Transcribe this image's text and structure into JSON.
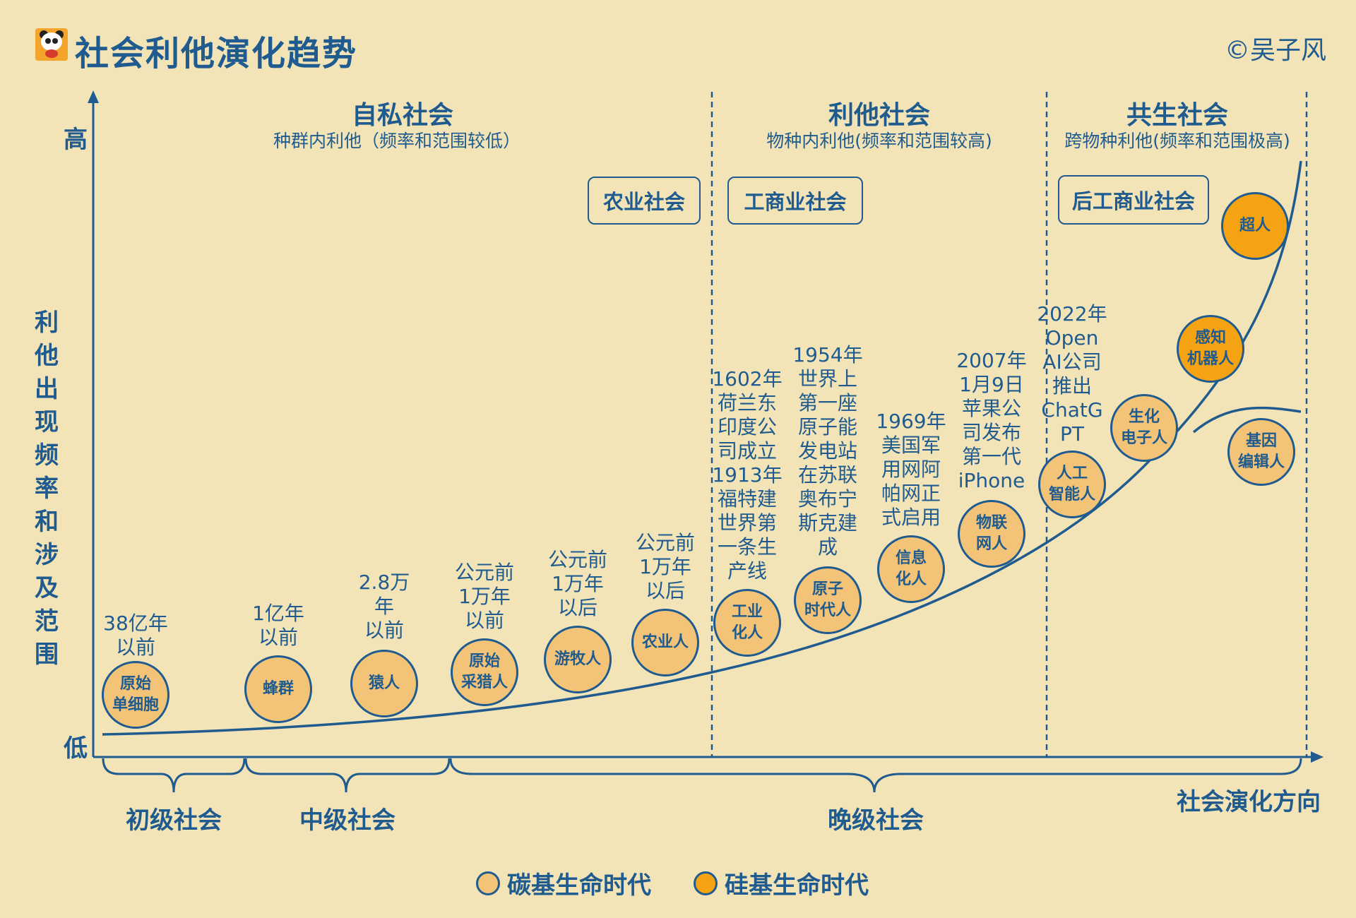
{
  "title": "社会利他演化趋势",
  "copyright": "©吴子风",
  "axes": {
    "y_label": "利他出现频率和涉及范围",
    "y_high": "高",
    "y_low": "低",
    "x_label": "社会演化方向"
  },
  "eras": [
    {
      "name": "自私社会",
      "sub": "种群内利他（频率和范围较低）"
    },
    {
      "name": "利他社会",
      "sub": "物种内利他(频率和范围较高)"
    },
    {
      "name": "共生社会",
      "sub": "跨物种利他(频率和范围极高)"
    }
  ],
  "societies": [
    "农业社会",
    "工商业社会",
    "后工商业社会"
  ],
  "stages": [
    "初级社会",
    "中级社会",
    "晚级社会"
  ],
  "nodes": [
    {
      "lines": [
        "原始",
        "单细胞"
      ],
      "type": "carbon",
      "note": [
        "38亿年",
        "以前"
      ]
    },
    {
      "lines": [
        "蜂群"
      ],
      "type": "carbon",
      "note": [
        "1亿年",
        "以前"
      ]
    },
    {
      "lines": [
        "猿人"
      ],
      "type": "carbon",
      "note": [
        "2.8万",
        "年",
        "以前"
      ]
    },
    {
      "lines": [
        "原始",
        "采猎人"
      ],
      "type": "carbon",
      "note": [
        "公元前",
        "1万年",
        "以前"
      ]
    },
    {
      "lines": [
        "游牧人"
      ],
      "type": "carbon",
      "note": [
        "公元前",
        "1万年",
        "以后"
      ]
    },
    {
      "lines": [
        "农业人"
      ],
      "type": "carbon",
      "note": [
        "公元前",
        "1万年",
        "以后"
      ]
    },
    {
      "lines": [
        "工业",
        "化人"
      ],
      "type": "carbon",
      "note": [
        "1602年",
        "荷兰东",
        "印度公",
        "司成立",
        "1913年",
        "福特建",
        "世界第",
        "一条生",
        "产线"
      ]
    },
    {
      "lines": [
        "原子",
        "时代人"
      ],
      "type": "carbon",
      "note": [
        "1954年",
        "世界上",
        "第一座",
        "原子能",
        "发电站",
        "在苏联",
        "奥布宁",
        "斯克建",
        "成"
      ]
    },
    {
      "lines": [
        "信息",
        "化人"
      ],
      "type": "carbon",
      "note": [
        "1969年",
        "美国军",
        "用网阿",
        "帕网正",
        "式启用"
      ]
    },
    {
      "lines": [
        "物联",
        "网人"
      ],
      "type": "carbon",
      "note": [
        "2007年",
        "1月9日",
        "苹果公",
        "司发布",
        "第一代",
        "iPhone"
      ]
    },
    {
      "lines": [
        "人工",
        "智能人"
      ],
      "type": "carbon",
      "note": [
        "2022年",
        "Open",
        "AI公司",
        "推出",
        "ChatG",
        "PT"
      ]
    },
    {
      "lines": [
        "生化",
        "电子人"
      ],
      "type": "carbon",
      "note": []
    },
    {
      "lines": [
        "感知",
        "机器人"
      ],
      "type": "silicon",
      "note": []
    },
    {
      "lines": [
        "超人"
      ],
      "type": "silicon",
      "note": []
    },
    {
      "lines": [
        "基因",
        "编辑人"
      ],
      "type": "carbon",
      "note": []
    }
  ],
  "legend": [
    {
      "label": "碳基生命时代",
      "color": "#f3c477"
    },
    {
      "label": "硅基生命时代",
      "color": "#f6a313"
    }
  ],
  "colors": {
    "primary": "#1f5b8f",
    "background": "#f3e4b8",
    "carbon": "#f3c477",
    "silicon": "#f6a313"
  }
}
